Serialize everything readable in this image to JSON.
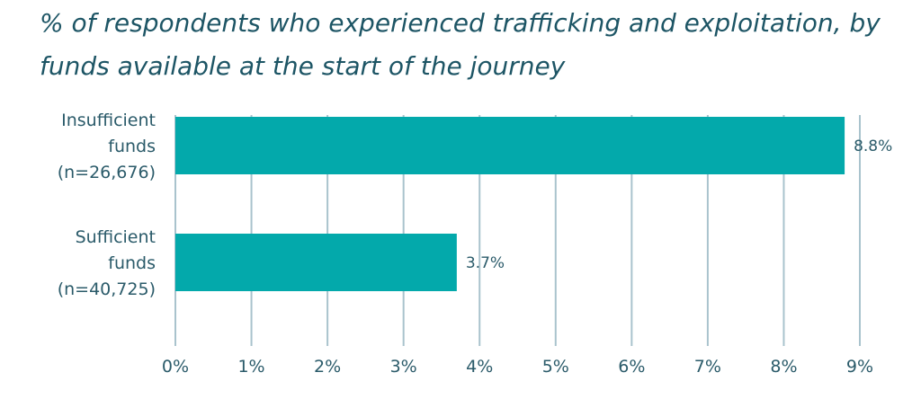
{
  "chart_data": {
    "type": "bar",
    "orientation": "horizontal",
    "title": "% of respondents who experienced trafficking and exploitation, by funds available at the start of the journey",
    "categories": [
      [
        "Insufficient",
        "funds",
        "(n=26,676)"
      ],
      [
        "Sufficient",
        "funds",
        "(n=40,725)"
      ]
    ],
    "values": [
      8.8,
      3.7
    ],
    "data_labels": [
      "8.8%",
      "3.7%"
    ],
    "xlim": [
      0,
      9
    ],
    "xticks": [
      0,
      1,
      2,
      3,
      4,
      5,
      6,
      7,
      8,
      9
    ],
    "xtick_labels": [
      "0%",
      "1%",
      "2%",
      "3%",
      "4%",
      "5%",
      "6%",
      "7%",
      "8%",
      "9%"
    ],
    "grid": "vertical",
    "legend": "none",
    "colors": {
      "bar": "#03a9ab",
      "grid": "#a9c3cd",
      "text": "#2b5b6a",
      "title": "#1d5565"
    }
  }
}
